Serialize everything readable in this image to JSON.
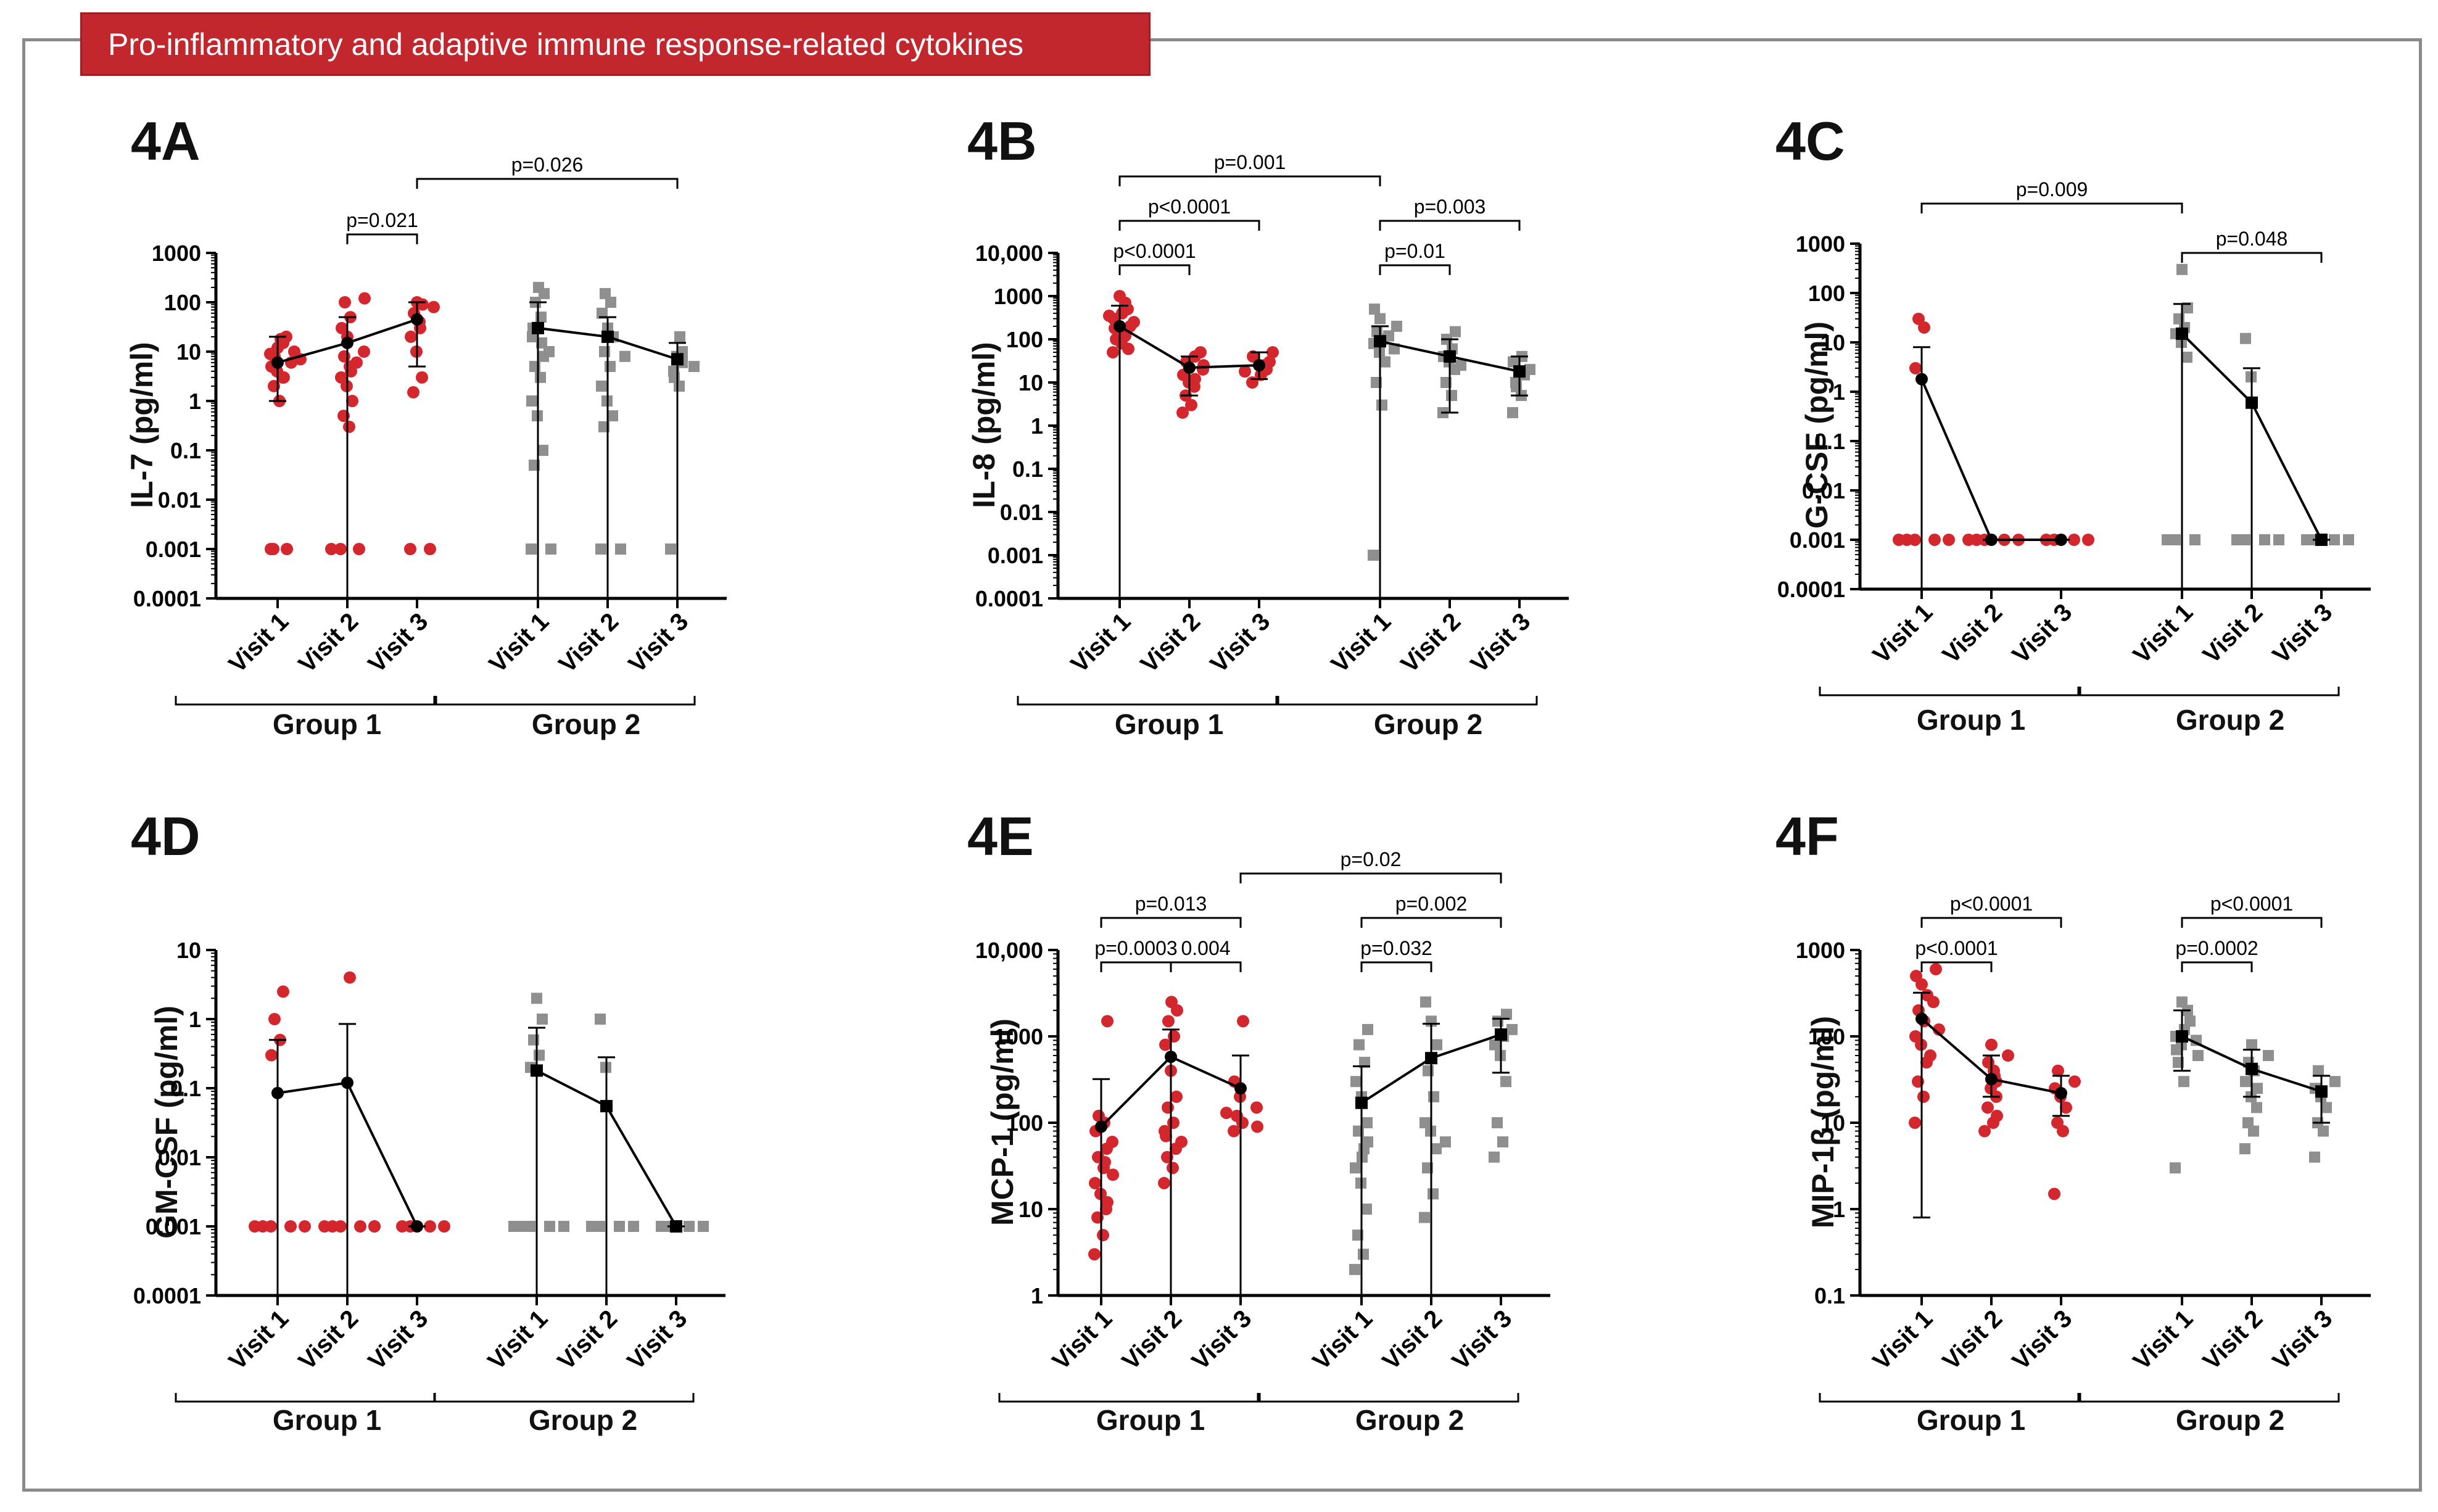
{
  "banner": {
    "title": "Pro-inflammatory and adaptive immune response-related cytokines"
  },
  "colors": {
    "group1": "#d3262d",
    "group2": "#8f8f8f",
    "line": "#000000",
    "frame": "#8a8a8a"
  },
  "chart_data": [
    {
      "type": "scatter",
      "panel": "4A",
      "ylabel": "IL-7 (pg/ml)",
      "yscale": "log",
      "ylim": [
        0.0001,
        1000
      ],
      "ticks": [
        "0.0001",
        "0.001",
        "0.01",
        "0.1",
        "1",
        "10",
        "100",
        "1000"
      ],
      "categories": [
        "Visit 1",
        "Visit 2",
        "Visit 3"
      ],
      "groups": [
        "Group 1",
        "Group 2"
      ],
      "series": [
        {
          "name": "Group 1",
          "points": [
            [
              0.001,
              1,
              2,
              3,
              4,
              5,
              6,
              8,
              10,
              12,
              15,
              18,
              20,
              5,
              7,
              3,
              9,
              0.001,
              0.001
            ],
            [
              0.001,
              0.3,
              0.5,
              1,
              2,
              3,
              5,
              8,
              10,
              20,
              30,
              50,
              100,
              120,
              0.001,
              0.001,
              4,
              6
            ],
            [
              0.001,
              0.001,
              1.5,
              3,
              10,
              20,
              40,
              60,
              80,
              100,
              90,
              30
            ]
          ],
          "medians": [
            6,
            15,
            45
          ],
          "err": [
            [
              1,
              20
            ],
            [
              0.0001,
              50
            ],
            [
              5,
              100
            ]
          ]
        },
        {
          "name": "Group 2",
          "points": [
            [
              0.001,
              0.001,
              0.05,
              0.1,
              0.5,
              1,
              3,
              5,
              8,
              10,
              20,
              50,
              100,
              150,
              200,
              30,
              15
            ],
            [
              0.001,
              0.001,
              0.3,
              0.5,
              1,
              2,
              5,
              10,
              20,
              30,
              60,
              100,
              150,
              8
            ],
            [
              0.001,
              2,
              4,
              6,
              8,
              10,
              20,
              3,
              5
            ]
          ],
          "medians": [
            30,
            20,
            7
          ],
          "err": [
            [
              0.0001,
              100
            ],
            [
              0.0001,
              50
            ],
            [
              0.0001,
              15
            ]
          ]
        }
      ],
      "brackets": [
        {
          "label": "p=0.021",
          "from": [
            0,
            1
          ],
          "to": [
            0,
            2
          ],
          "level": 0
        },
        {
          "label": "p=0.026",
          "from": [
            0,
            2
          ],
          "to": [
            1,
            2
          ],
          "level": 1
        }
      ]
    },
    {
      "type": "scatter",
      "panel": "4B",
      "ylabel": "IL-8 (pg/ml)",
      "yscale": "log",
      "ylim": [
        0.0001,
        10000
      ],
      "ticks": [
        "0.0001",
        "0.001",
        "0.01",
        "0.1",
        "1",
        "10",
        "100",
        "1000",
        "10,000"
      ],
      "categories": [
        "Visit 1",
        "Visit 2",
        "Visit 3"
      ],
      "groups": [
        "Group 1",
        "Group 2"
      ],
      "series": [
        {
          "name": "Group 1",
          "points": [
            [
              50,
              80,
              100,
              150,
              200,
              300,
              400,
              500,
              700,
              1000,
              120,
              250,
              60,
              180,
              350
            ],
            [
              2,
              3,
              5,
              8,
              10,
              15,
              20,
              30,
              40,
              50,
              12,
              25
            ],
            [
              10,
              15,
              20,
              25,
              30,
              40,
              50,
              18
            ]
          ],
          "medians": [
            200,
            22,
            25
          ],
          "err": [
            [
              0.0001,
              600
            ],
            [
              5,
              40
            ],
            [
              12,
              50
            ]
          ]
        },
        {
          "name": "Group 2",
          "points": [
            [
              0.001,
              3,
              10,
              30,
              50,
              80,
              100,
              150,
              200,
              300,
              500,
              60,
              120
            ],
            [
              2,
              5,
              10,
              20,
              30,
              40,
              60,
              100,
              150,
              25
            ],
            [
              2,
              5,
              10,
              15,
              20,
              30,
              40,
              8
            ]
          ],
          "medians": [
            90,
            40,
            18
          ],
          "err": [
            [
              0.0001,
              200
            ],
            [
              2,
              100
            ],
            [
              5,
              40
            ]
          ]
        }
      ],
      "brackets": [
        {
          "label": "p<0.0001",
          "from": [
            0,
            0
          ],
          "to": [
            0,
            1
          ],
          "level": 0
        },
        {
          "label": "p<0.0001",
          "from": [
            0,
            0
          ],
          "to": [
            0,
            2
          ],
          "level": 1
        },
        {
          "label": "p=0.001",
          "from": [
            0,
            0
          ],
          "to": [
            1,
            0
          ],
          "level": 2
        },
        {
          "label": "p=0.01",
          "from": [
            1,
            0
          ],
          "to": [
            1,
            1
          ],
          "level": 0
        },
        {
          "label": "p=0.003",
          "from": [
            1,
            0
          ],
          "to": [
            1,
            2
          ],
          "level": 1
        }
      ]
    },
    {
      "type": "scatter",
      "panel": "4C",
      "ylabel": "G-CSF (pg/ml)",
      "yscale": "log",
      "ylim": [
        0.0001,
        1000
      ],
      "ticks": [
        "0.0001",
        "0.001",
        "0.01",
        "0.1",
        "1",
        "10",
        "100",
        "1000"
      ],
      "categories": [
        "Visit 1",
        "Visit 2",
        "Visit 3"
      ],
      "groups": [
        "Group 1",
        "Group 2"
      ],
      "series": [
        {
          "name": "Group 1",
          "points": [
            [
              0.001,
              0.001,
              0.001,
              0.001,
              0.001,
              3,
              20,
              30
            ],
            [
              0.001,
              0.001,
              0.001,
              0.001,
              0.001
            ],
            [
              0.001,
              0.001,
              0.001,
              0.001
            ]
          ],
          "medians": [
            1.8,
            0.001,
            0.001
          ],
          "err": [
            [
              0.0001,
              8
            ],
            [
              0.001,
              0.001
            ],
            [
              0.001,
              0.001
            ]
          ]
        },
        {
          "name": "Group 2",
          "points": [
            [
              0.001,
              0.001,
              0.001,
              5,
              10,
              15,
              20,
              30,
              50,
              300
            ],
            [
              0.001,
              0.001,
              0.001,
              0.001,
              2,
              12
            ],
            [
              0.001,
              0.001,
              0.001,
              0.001
            ]
          ],
          "medians": [
            15,
            0.6,
            0.001
          ],
          "err": [
            [
              0.0001,
              60
            ],
            [
              0.0001,
              3
            ],
            [
              0.001,
              0.001
            ]
          ]
        }
      ],
      "brackets": [
        {
          "label": "p=0.009",
          "from": [
            0,
            0
          ],
          "to": [
            1,
            0
          ],
          "level": 1
        },
        {
          "label": "p=0.048",
          "from": [
            1,
            0
          ],
          "to": [
            1,
            2
          ],
          "level": 0
        }
      ]
    },
    {
      "type": "scatter",
      "panel": "4D",
      "ylabel": "GM-CSF (pg/ml)",
      "yscale": "log",
      "ylim": [
        0.0001,
        10
      ],
      "ticks": [
        "0.0001",
        "0.001",
        "0.01",
        "0.1",
        "1",
        "10"
      ],
      "categories": [
        "Visit 1",
        "Visit 2",
        "Visit 3"
      ],
      "groups": [
        "Group 1",
        "Group 2"
      ],
      "series": [
        {
          "name": "Group 1",
          "points": [
            [
              0.001,
              0.001,
              0.001,
              0.001,
              0.001,
              0.3,
              0.5,
              1,
              2.5
            ],
            [
              0.001,
              0.001,
              0.001,
              0.001,
              0.001,
              0.001,
              4
            ],
            [
              0.001,
              0.001,
              0.001,
              0.001
            ]
          ],
          "medians": [
            0.085,
            0.12,
            0.001
          ],
          "err": [
            [
              0.0001,
              0.5
            ],
            [
              0.0001,
              0.85
            ],
            [
              0.001,
              0.001
            ]
          ]
        },
        {
          "name": "Group 2",
          "points": [
            [
              0.001,
              0.001,
              0.001,
              0.001,
              0.001,
              0.2,
              0.3,
              0.5,
              1,
              2
            ],
            [
              0.001,
              0.001,
              0.001,
              0.001,
              0.2,
              1
            ],
            [
              0.001,
              0.001,
              0.001,
              0.001
            ]
          ],
          "medians": [
            0.18,
            0.055,
            0.001
          ],
          "err": [
            [
              0.0001,
              0.75
            ],
            [
              0.0001,
              0.28
            ],
            [
              0.001,
              0.001
            ]
          ]
        }
      ],
      "brackets": []
    },
    {
      "type": "scatter",
      "panel": "4E",
      "ylabel": "MCP-1 (pg/ml)",
      "yscale": "log",
      "ylim": [
        1,
        10000
      ],
      "ticks": [
        "1",
        "10",
        "100",
        "1000",
        "10,000"
      ],
      "categories": [
        "Visit 1",
        "Visit 2",
        "Visit 3"
      ],
      "groups": [
        "Group 1",
        "Group 2"
      ],
      "series": [
        {
          "name": "Group 1",
          "points": [
            [
              3,
              5,
              8,
              10,
              15,
              20,
              30,
              40,
              50,
              60,
              80,
              100,
              120,
              1500,
              25,
              12,
              35
            ],
            [
              20,
              30,
              40,
              50,
              60,
              80,
              100,
              150,
              200,
              400,
              800,
              1000,
              1500,
              2000,
              2500,
              70
            ],
            [
              80,
              100,
              120,
              150,
              200,
              300,
              1500,
              130,
              90
            ]
          ],
          "medians": [
            90,
            580,
            250
          ],
          "err": [
            [
              1,
              320
            ],
            [
              1,
              1200
            ],
            [
              1,
              600
            ]
          ]
        },
        {
          "name": "Group 2",
          "points": [
            [
              2,
              3,
              5,
              10,
              20,
              30,
              50,
              80,
              100,
              200,
              300,
              500,
              800,
              1200,
              40,
              60
            ],
            [
              8,
              15,
              30,
              50,
              80,
              100,
              200,
              400,
              800,
              1500,
              2500,
              60
            ],
            [
              40,
              60,
              100,
              300,
              600,
              800,
              1000,
              1500,
              1800,
              1200
            ]
          ],
          "medians": [
            170,
            560,
            1050
          ],
          "err": [
            [
              1,
              450
            ],
            [
              1,
              1400
            ],
            [
              380,
              1600
            ]
          ]
        }
      ],
      "brackets": [
        {
          "label": "p=0.0003",
          "from": [
            0,
            0
          ],
          "to": [
            0,
            1
          ],
          "level": 0
        },
        {
          "label": "0.004",
          "from": [
            0,
            1
          ],
          "to": [
            0,
            2
          ],
          "level": 0
        },
        {
          "label": "p=0.013",
          "from": [
            0,
            0
          ],
          "to": [
            0,
            2
          ],
          "level": 1
        },
        {
          "label": "p=0.02",
          "from": [
            0,
            2
          ],
          "to": [
            1,
            2
          ],
          "level": 2
        },
        {
          "label": "p=0.032",
          "from": [
            1,
            0
          ],
          "to": [
            1,
            1
          ],
          "level": 0
        },
        {
          "label": "p=0.002",
          "from": [
            1,
            0
          ],
          "to": [
            1,
            2
          ],
          "level": 1
        }
      ]
    },
    {
      "type": "scatter",
      "panel": "4F",
      "ylabel": "MIP-1β (pg/ml)",
      "yscale": "log",
      "ylim": [
        0.1,
        1000
      ],
      "ticks": [
        "0.1",
        "1",
        "10",
        "100",
        "1000"
      ],
      "categories": [
        "Visit 1",
        "Visit 2",
        "Visit 3"
      ],
      "groups": [
        "Group 1",
        "Group 2"
      ],
      "series": [
        {
          "name": "Group 1",
          "points": [
            [
              10,
              20,
              30,
              50,
              80,
              100,
              150,
              200,
              300,
              400,
              500,
              600,
              60,
              120,
              250
            ],
            [
              8,
              10,
              15,
              20,
              25,
              30,
              40,
              50,
              60,
              80,
              12,
              35
            ],
            [
              1.5,
              8,
              10,
              15,
              20,
              25,
              30,
              40
            ]
          ],
          "medians": [
            160,
            32,
            22
          ],
          "err": [
            [
              0.8,
              320
            ],
            [
              20,
              60
            ],
            [
              12,
              35
            ]
          ]
        },
        {
          "name": "Group 2",
          "points": [
            [
              3,
              30,
              50,
              60,
              80,
              100,
              120,
              150,
              200,
              250,
              70,
              90
            ],
            [
              5,
              8,
              10,
              15,
              20,
              30,
              40,
              50,
              60,
              80,
              25
            ],
            [
              4,
              8,
              10,
              15,
              20,
              25,
              30,
              40
            ]
          ],
          "medians": [
            100,
            42,
            23
          ],
          "err": [
            [
              40,
              200
            ],
            [
              20,
              70
            ],
            [
              10,
              35
            ]
          ]
        }
      ],
      "brackets": [
        {
          "label": "p<0.0001",
          "from": [
            0,
            0
          ],
          "to": [
            0,
            1
          ],
          "level": 0
        },
        {
          "label": "p<0.0001",
          "from": [
            0,
            0
          ],
          "to": [
            0,
            2
          ],
          "level": 1
        },
        {
          "label": "p=0.0002",
          "from": [
            1,
            0
          ],
          "to": [
            1,
            1
          ],
          "level": 0
        },
        {
          "label": "p<0.0001",
          "from": [
            1,
            0
          ],
          "to": [
            1,
            2
          ],
          "level": 1
        }
      ]
    }
  ]
}
